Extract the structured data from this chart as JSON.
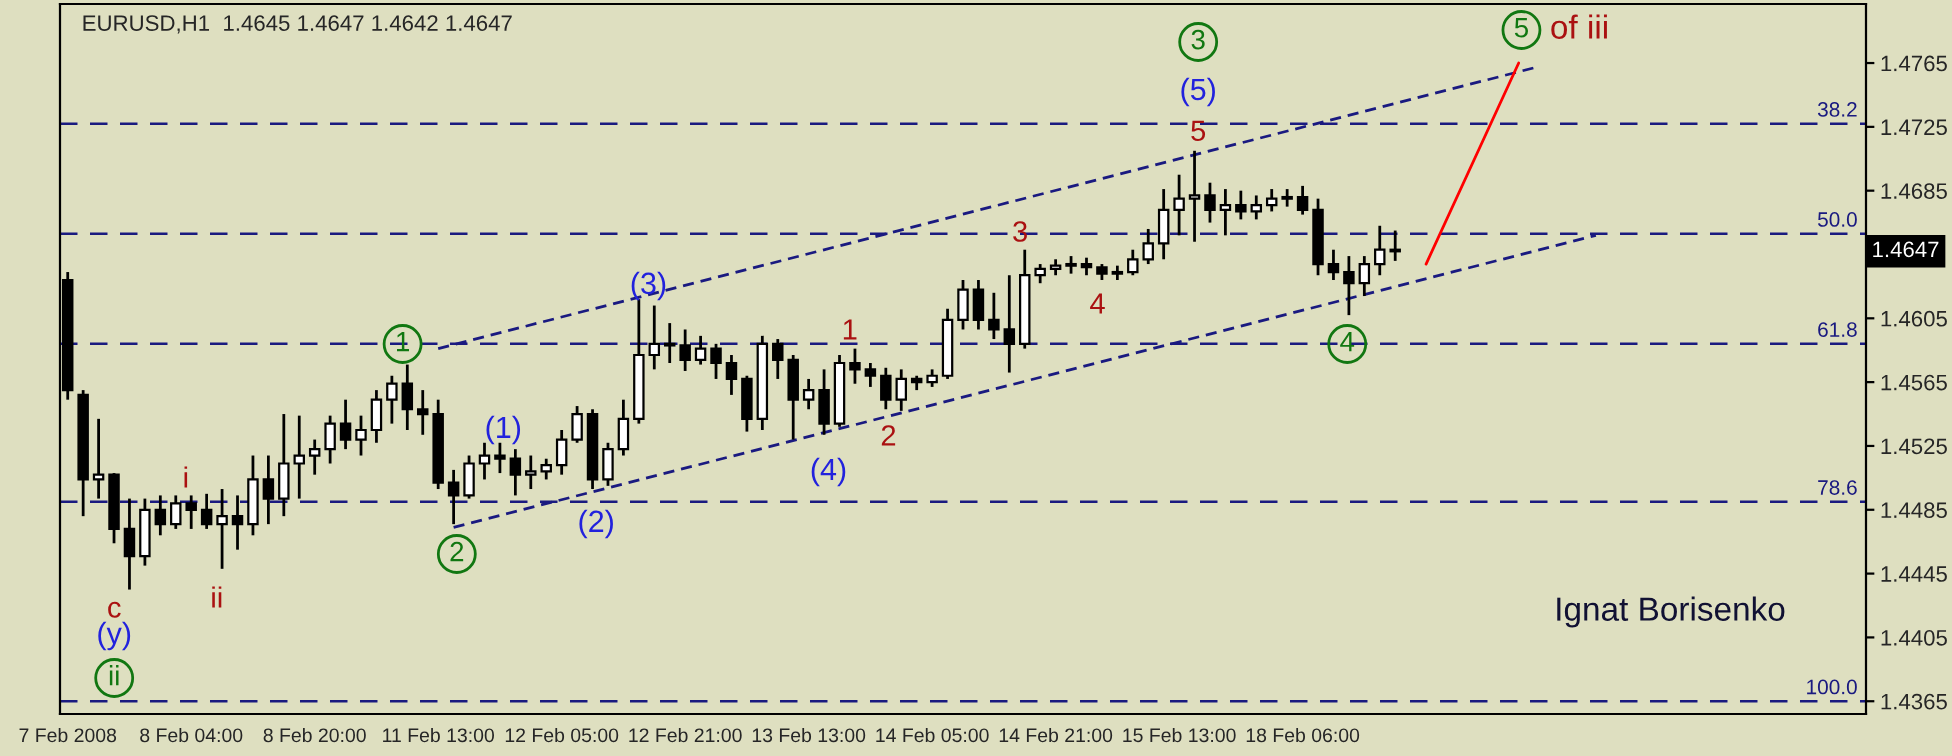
{
  "chart_data": {
    "type": "candlestick",
    "title": "EURUSD,H1  1.4645 1.4647 1.4642 1.4647",
    "categories": [
      "7 Feb 2008",
      null,
      null,
      null,
      null,
      null,
      null,
      null,
      "8 Feb 04:00",
      null,
      null,
      null,
      null,
      null,
      null,
      null,
      "8 Feb 20:00",
      null,
      null,
      null,
      null,
      null,
      null,
      null,
      "11 Feb 13:00",
      null,
      null,
      null,
      null,
      null,
      null,
      null,
      "12 Feb 05:00",
      null,
      null,
      null,
      null,
      null,
      null,
      null,
      "12 Feb 21:00",
      null,
      null,
      null,
      null,
      null,
      null,
      null,
      "13 Feb 13:00",
      null,
      null,
      null,
      null,
      null,
      null,
      null,
      "14 Feb 05:00",
      null,
      null,
      null,
      null,
      null,
      null,
      null,
      "14 Feb 21:00",
      null,
      null,
      null,
      null,
      null,
      null,
      null,
      "15 Feb 13:00",
      null,
      null,
      null,
      null,
      null,
      null,
      null,
      "18 Feb 06:00",
      null,
      null,
      null,
      null,
      null,
      null,
      null,
      null,
      null,
      null,
      null,
      null,
      null,
      null,
      null,
      null,
      null,
      null,
      null,
      null,
      null,
      null,
      null,
      null,
      null,
      null,
      null,
      null,
      null,
      null,
      null,
      null,
      null,
      null,
      null,
      null
    ],
    "ohlc": [
      [
        1.4629,
        1.4634,
        1.4554,
        1.456
      ],
      [
        1.4557,
        1.456,
        1.4481,
        1.4504
      ],
      [
        1.4504,
        1.4542,
        1.4492,
        1.4507
      ],
      [
        1.4507,
        1.4508,
        1.4464,
        1.4473
      ],
      [
        1.4473,
        1.4492,
        1.4435,
        1.4456
      ],
      [
        1.4456,
        1.4492,
        1.445,
        1.4485
      ],
      [
        1.4485,
        1.4494,
        1.4469,
        1.4476
      ],
      [
        1.4476,
        1.4494,
        1.4473,
        1.4489
      ],
      [
        1.4489,
        1.4494,
        1.4473,
        1.4485
      ],
      [
        1.4485,
        1.4495,
        1.4473,
        1.4476
      ],
      [
        1.4476,
        1.4498,
        1.4448,
        1.4481
      ],
      [
        1.4481,
        1.4494,
        1.446,
        1.4476
      ],
      [
        1.4476,
        1.4519,
        1.4469,
        1.4504
      ],
      [
        1.4504,
        1.4519,
        1.4476,
        1.4492
      ],
      [
        1.4492,
        1.4545,
        1.4481,
        1.4514
      ],
      [
        1.4514,
        1.4544,
        1.4492,
        1.4519
      ],
      [
        1.4519,
        1.4529,
        1.4507,
        1.4523
      ],
      [
        1.4523,
        1.4544,
        1.4514,
        1.4539
      ],
      [
        1.4539,
        1.4554,
        1.4523,
        1.4529
      ],
      [
        1.4529,
        1.4544,
        1.4519,
        1.4535
      ],
      [
        1.4535,
        1.456,
        1.4527,
        1.4554
      ],
      [
        1.4554,
        1.4569,
        1.4539,
        1.4564
      ],
      [
        1.4564,
        1.4576,
        1.4535,
        1.4548
      ],
      [
        1.4548,
        1.456,
        1.4532,
        1.4545
      ],
      [
        1.4545,
        1.4554,
        1.4498,
        1.4502
      ],
      [
        1.4502,
        1.451,
        1.4476,
        1.4494
      ],
      [
        1.4494,
        1.4519,
        1.4492,
        1.4514
      ],
      [
        1.4514,
        1.4527,
        1.4504,
        1.4519
      ],
      [
        1.4519,
        1.4527,
        1.4508,
        1.4517
      ],
      [
        1.4517,
        1.4523,
        1.4494,
        1.4507
      ],
      [
        1.4507,
        1.4519,
        1.4498,
        1.4509
      ],
      [
        1.4509,
        1.4517,
        1.4504,
        1.4513
      ],
      [
        1.4513,
        1.4535,
        1.4507,
        1.4529
      ],
      [
        1.4529,
        1.455,
        1.4527,
        1.4545
      ],
      [
        1.4545,
        1.4548,
        1.4498,
        1.4504
      ],
      [
        1.4504,
        1.4527,
        1.45,
        1.4523
      ],
      [
        1.4523,
        1.4554,
        1.4519,
        1.4542
      ],
      [
        1.4542,
        1.4617,
        1.4539,
        1.4582
      ],
      [
        1.4582,
        1.4613,
        1.4573,
        1.4589
      ],
      [
        1.4589,
        1.4602,
        1.4577,
        1.4588
      ],
      [
        1.4588,
        1.4598,
        1.4572,
        1.4579
      ],
      [
        1.4579,
        1.4594,
        1.4576,
        1.4586
      ],
      [
        1.4586,
        1.4589,
        1.4567,
        1.4577
      ],
      [
        1.4577,
        1.4582,
        1.4557,
        1.4567
      ],
      [
        1.4567,
        1.4569,
        1.4534,
        1.4542
      ],
      [
        1.4542,
        1.4594,
        1.4535,
        1.4589
      ],
      [
        1.4589,
        1.4592,
        1.4567,
        1.4579
      ],
      [
        1.4579,
        1.4582,
        1.4529,
        1.4554
      ],
      [
        1.4554,
        1.4567,
        1.4548,
        1.456
      ],
      [
        1.456,
        1.4573,
        1.4532,
        1.4539
      ],
      [
        1.4539,
        1.4582,
        1.4537,
        1.4577
      ],
      [
        1.4577,
        1.4586,
        1.4564,
        1.4573
      ],
      [
        1.4573,
        1.4577,
        1.4562,
        1.4569
      ],
      [
        1.4569,
        1.4574,
        1.4548,
        1.4554
      ],
      [
        1.4554,
        1.4573,
        1.4547,
        1.4567
      ],
      [
        1.4567,
        1.4569,
        1.456,
        1.4565
      ],
      [
        1.4565,
        1.4573,
        1.4562,
        1.4569
      ],
      [
        1.4569,
        1.4611,
        1.4567,
        1.4604
      ],
      [
        1.4604,
        1.4629,
        1.4598,
        1.4623
      ],
      [
        1.4623,
        1.4629,
        1.4598,
        1.4604
      ],
      [
        1.4604,
        1.4621,
        1.4592,
        1.4598
      ],
      [
        1.4598,
        1.4632,
        1.4571,
        1.4589
      ],
      [
        1.4589,
        1.4648,
        1.4586,
        1.4632
      ],
      [
        1.4632,
        1.4639,
        1.4627,
        1.4636
      ],
      [
        1.4636,
        1.4642,
        1.4632,
        1.4638
      ],
      [
        1.4638,
        1.4644,
        1.4633,
        1.4639
      ],
      [
        1.4639,
        1.4643,
        1.4632,
        1.4637
      ],
      [
        1.4637,
        1.4639,
        1.4629,
        1.4633
      ],
      [
        1.4633,
        1.4638,
        1.4629,
        1.4634
      ],
      [
        1.4634,
        1.4648,
        1.4632,
        1.4642
      ],
      [
        1.4642,
        1.4661,
        1.4639,
        1.4652
      ],
      [
        1.4652,
        1.4686,
        1.4642,
        1.4673
      ],
      [
        1.4673,
        1.4695,
        1.4657,
        1.468
      ],
      [
        1.468,
        1.471,
        1.4653,
        1.4682
      ],
      [
        1.4682,
        1.469,
        1.4665,
        1.4673
      ],
      [
        1.4673,
        1.4686,
        1.4657,
        1.4676
      ],
      [
        1.4676,
        1.4685,
        1.4667,
        1.4672
      ],
      [
        1.4672,
        1.4682,
        1.4667,
        1.4676
      ],
      [
        1.4676,
        1.4686,
        1.4672,
        1.468
      ],
      [
        1.468,
        1.4686,
        1.4675,
        1.4681
      ],
      [
        1.4681,
        1.4688,
        1.467,
        1.4673
      ],
      [
        1.4673,
        1.468,
        1.4632,
        1.4639
      ],
      [
        1.4639,
        1.4648,
        1.4629,
        1.4634
      ],
      [
        1.4634,
        1.4644,
        1.4607,
        1.4627
      ],
      [
        1.4627,
        1.4644,
        1.4619,
        1.4639
      ],
      [
        1.4639,
        1.4663,
        1.4632,
        1.4648
      ],
      [
        1.4648,
        1.466,
        1.4641,
        1.4647
      ],
      null,
      null,
      null,
      null,
      null,
      null,
      null,
      null,
      null,
      null,
      null,
      null,
      null,
      null,
      null,
      null,
      null,
      null,
      null,
      null,
      null,
      null,
      null,
      null,
      null,
      null,
      null,
      null,
      null,
      null
    ],
    "series": [
      {
        "type": "line",
        "values": [
          null,
          null,
          null,
          null,
          null,
          null,
          null,
          null,
          null,
          null,
          null,
          null,
          null,
          null,
          null,
          null,
          null,
          null,
          null,
          null,
          null,
          null,
          null,
          null,
          1.4586,
          null,
          null,
          null,
          null,
          null,
          null,
          null,
          null,
          null,
          null,
          null,
          null,
          null,
          null,
          null,
          null,
          null,
          null,
          null,
          null,
          null,
          null,
          null,
          null,
          null,
          null,
          null,
          null,
          null,
          null,
          null,
          null,
          null,
          null,
          null,
          null,
          null,
          null,
          null,
          null,
          null,
          null,
          null,
          null,
          null,
          null,
          null,
          null,
          null,
          null,
          null,
          null,
          null,
          null,
          null,
          null,
          null,
          null,
          null,
          null,
          null,
          null,
          null,
          null,
          null,
          null,
          null,
          null,
          null,
          null,
          1.4762,
          null,
          null,
          null,
          null,
          null,
          null,
          null,
          null,
          null,
          null,
          null,
          null,
          null,
          null,
          null,
          null,
          null,
          null,
          null,
          null,
          null
        ],
        "color": "#1a1a80",
        "line_style": "dashed"
      },
      {
        "type": "line",
        "values": [
          null,
          null,
          null,
          null,
          null,
          null,
          null,
          null,
          null,
          null,
          null,
          null,
          null,
          null,
          null,
          null,
          null,
          null,
          null,
          null,
          null,
          null,
          null,
          null,
          null,
          1.4474,
          null,
          null,
          null,
          null,
          null,
          null,
          null,
          null,
          null,
          null,
          null,
          null,
          null,
          null,
          null,
          null,
          null,
          null,
          null,
          null,
          null,
          null,
          null,
          null,
          null,
          null,
          null,
          null,
          null,
          null,
          null,
          null,
          null,
          null,
          null,
          null,
          null,
          null,
          null,
          null,
          null,
          null,
          null,
          null,
          null,
          null,
          null,
          null,
          null,
          null,
          null,
          null,
          null,
          null,
          null,
          null,
          null,
          null,
          null,
          null,
          null,
          null,
          null,
          null,
          null,
          null,
          null,
          null,
          null,
          null,
          null,
          null,
          null,
          1.4657,
          null,
          null,
          null,
          null,
          null,
          null,
          null,
          null,
          null,
          null,
          null,
          null,
          null,
          null,
          null,
          null,
          null
        ],
        "color": "#1a1a80",
        "line_style": "dashed"
      },
      {
        "type": "line",
        "values": [
          null,
          null,
          null,
          null,
          null,
          null,
          null,
          null,
          null,
          null,
          null,
          null,
          null,
          null,
          null,
          null,
          null,
          null,
          null,
          null,
          null,
          null,
          null,
          null,
          null,
          null,
          null,
          null,
          null,
          null,
          null,
          null,
          null,
          null,
          null,
          null,
          null,
          null,
          null,
          null,
          null,
          null,
          null,
          null,
          null,
          null,
          null,
          null,
          null,
          null,
          null,
          null,
          null,
          null,
          null,
          null,
          null,
          null,
          null,
          null,
          null,
          null,
          null,
          null,
          null,
          null,
          null,
          null,
          null,
          null,
          null,
          null,
          null,
          null,
          null,
          null,
          null,
          null,
          null,
          null,
          null,
          null,
          null,
          null,
          null,
          null,
          null,
          null,
          1.4639,
          null,
          null,
          null,
          null,
          null,
          1.4765,
          null,
          null,
          null,
          null,
          null,
          null,
          null,
          null,
          null,
          null,
          null,
          null,
          null,
          null,
          null,
          null,
          null,
          null,
          null,
          null,
          null,
          null
        ],
        "color": "#ff0000",
        "line_style": "solid"
      }
    ],
    "ref_lines": [
      {
        "axis": "y",
        "value": 1.4727,
        "color": "#1a1a80",
        "line_style": "dashed"
      },
      {
        "axis": "y",
        "value": 1.4658,
        "color": "#1a1a80",
        "line_style": "dashed"
      },
      {
        "axis": "y",
        "value": 1.4589,
        "color": "#1a1a80",
        "line_style": "dashed"
      },
      {
        "axis": "y",
        "value": 1.449,
        "color": "#1a1a80",
        "line_style": "dashed"
      },
      {
        "axis": "y",
        "value": 1.4365,
        "color": "#1a1a80",
        "line_style": "dashed"
      }
    ],
    "annotations": [
      "38.2",
      "50.0",
      "61.8",
      "78.6",
      "100.0",
      "c",
      "(y)",
      "ii",
      "i",
      "ii",
      "1",
      "2",
      "(1)",
      "(2)",
      "(3)",
      "1",
      "(4)",
      "2",
      "3",
      "4",
      {
        "text": "5",
        "y": 1.4721
      },
      "(5)",
      "3",
      "4",
      "5",
      "of iii",
      "1.4647",
      "Ignat Borisenko"
    ],
    "ylim": [
      1.4357,
      1.4802
    ],
    "yticks": [
      1.4365,
      1.4405,
      1.4445,
      1.4485,
      1.4525,
      1.4565,
      1.4605,
      1.4685,
      1.4725,
      1.4765
    ],
    "grid": false,
    "legend": false
  }
}
